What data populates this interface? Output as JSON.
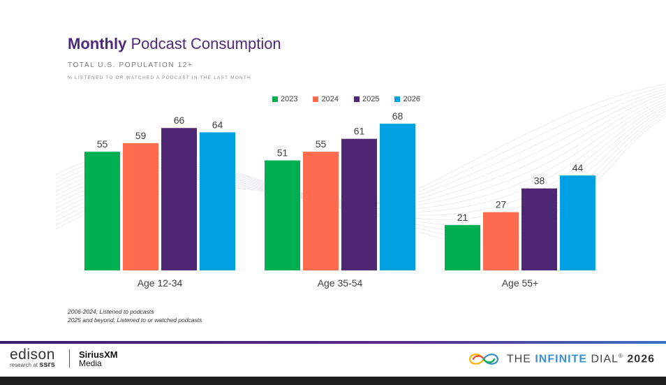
{
  "header": {
    "title_bold": "Monthly",
    "title_rest": " Podcast Consumption",
    "subtitle": "TOTAL U.S. POPULATION 12+",
    "subtitle2": "% LISTENED TO OR WATCHED A PODCAST IN THE LAST MONTH"
  },
  "chart_data": {
    "type": "bar",
    "categories": [
      "Age 12-34",
      "Age 35-54",
      "Age 55+"
    ],
    "series": [
      {
        "name": "2023",
        "color": "#00b050",
        "values": [
          55,
          51,
          21
        ]
      },
      {
        "name": "2024",
        "color": "#ff6b4f",
        "values": [
          59,
          55,
          27
        ]
      },
      {
        "name": "2025",
        "color": "#4e2774",
        "values": [
          66,
          61,
          38
        ]
      },
      {
        "name": "2026",
        "color": "#00a0e3",
        "values": [
          64,
          68,
          44
        ]
      }
    ],
    "ylim": [
      0,
      80
    ],
    "legend": "top-center",
    "grid": false
  },
  "notes": {
    "line1": "2006-2024: Listened to podcasts",
    "line2": "2025 and beyond: Listened to or watched podcasts"
  },
  "footer": {
    "edison": "edison",
    "edison_sub_prefix": "research at",
    "edison_sub_brand": "ssrs",
    "sirius_line1": "SiriusXM",
    "sirius_line2": "Media",
    "dial_the": "THE ",
    "dial_infinite": "INFINITE",
    "dial_rest": " DIAL",
    "dial_mark": "®",
    "dial_year": " 2026"
  }
}
